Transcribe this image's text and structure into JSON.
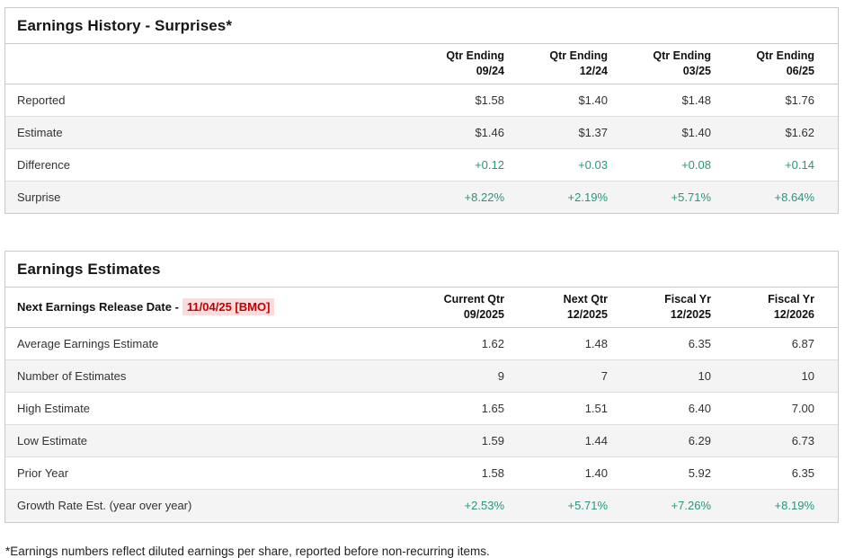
{
  "history": {
    "title": "Earnings History - Surprises*",
    "columns": [
      {
        "line1": "Qtr Ending",
        "line2": "09/24"
      },
      {
        "line1": "Qtr Ending",
        "line2": "12/24"
      },
      {
        "line1": "Qtr Ending",
        "line2": "03/25"
      },
      {
        "line1": "Qtr Ending",
        "line2": "06/25"
      }
    ],
    "rows": [
      {
        "label": "Reported",
        "values": [
          "$1.58",
          "$1.40",
          "$1.48",
          "$1.76"
        ]
      },
      {
        "label": "Estimate",
        "values": [
          "$1.46",
          "$1.37",
          "$1.40",
          "$1.62"
        ]
      },
      {
        "label": "Difference",
        "values": [
          "+0.12",
          "+0.03",
          "+0.08",
          "+0.14"
        ]
      },
      {
        "label": "Surprise",
        "values": [
          "+8.22%",
          "+2.19%",
          "+5.71%",
          "+8.64%"
        ]
      }
    ]
  },
  "estimates": {
    "title": "Earnings Estimates",
    "release_label": "Next Earnings Release Date -",
    "release_date": "11/04/25 [BMO]",
    "columns": [
      {
        "line1": "Current Qtr",
        "line2": "09/2025"
      },
      {
        "line1": "Next Qtr",
        "line2": "12/2025"
      },
      {
        "line1": "Fiscal Yr",
        "line2": "12/2025"
      },
      {
        "line1": "Fiscal Yr",
        "line2": "12/2026"
      }
    ],
    "rows": [
      {
        "label": "Average Earnings Estimate",
        "values": [
          "1.62",
          "1.48",
          "6.35",
          "6.87"
        ]
      },
      {
        "label": "Number of Estimates",
        "values": [
          "9",
          "7",
          "10",
          "10"
        ]
      },
      {
        "label": "High Estimate",
        "values": [
          "1.65",
          "1.51",
          "6.40",
          "7.00"
        ]
      },
      {
        "label": "Low Estimate",
        "values": [
          "1.59",
          "1.44",
          "6.29",
          "6.73"
        ]
      },
      {
        "label": "Prior Year",
        "values": [
          "1.58",
          "1.40",
          "5.92",
          "6.35"
        ]
      },
      {
        "label": "Growth Rate Est. (year over year)",
        "values": [
          "+2.53%",
          "+5.71%",
          "+7.26%",
          "+8.19%"
        ]
      }
    ]
  },
  "footnote": "*Earnings numbers reflect diluted earnings per share, reported before non-recurring items.",
  "colors": {
    "positive_value": "#28967e",
    "release_date_text": "#c00000",
    "release_date_background": "#fbdcdc",
    "row_alternate_background": "#f4f4f4",
    "panel_border": "#c9c9c9"
  }
}
